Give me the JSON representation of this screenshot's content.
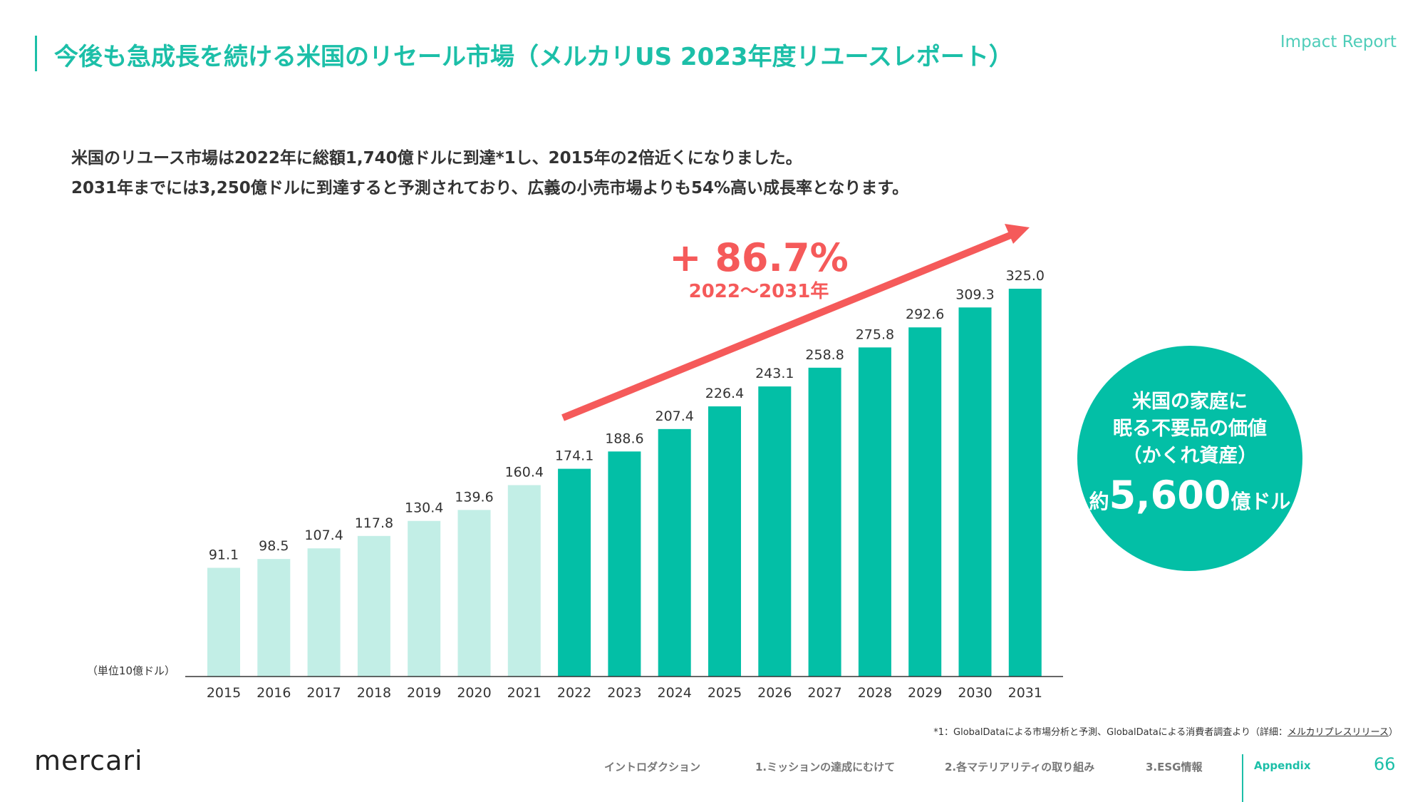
{
  "header": {
    "title": "今後も急成長を続ける米国のリセール市場（メルカリUS 2023年度リユースレポート）",
    "report": "Impact Report"
  },
  "lead": [
    "米国のリユース市場は2022年に総額1,740億ドルに到達*1し、2015年の2倍近くになりました。",
    "2031年までには3,250億ドルに到達すると予測されており、広義の小売市場よりも54%高い成長率となります。"
  ],
  "chart_data": {
    "type": "bar",
    "categories": [
      "2015",
      "2016",
      "2017",
      "2018",
      "2019",
      "2020",
      "2021",
      "2022",
      "2023",
      "2024",
      "2025",
      "2026",
      "2027",
      "2028",
      "2029",
      "2030",
      "2031"
    ],
    "values": [
      91.1,
      98.5,
      107.4,
      117.8,
      130.4,
      139.6,
      160.4,
      174.1,
      188.6,
      207.4,
      226.4,
      243.1,
      258.8,
      275.8,
      292.6,
      309.3,
      325.0
    ],
    "ylabel": "（単位10億ドル）",
    "ylim": [
      0,
      325
    ],
    "grid": false,
    "colors": {
      "actual": "#c2eee6",
      "forecast": "#03bfa6",
      "arrow": "#f55a5a"
    },
    "annotation": {
      "growth": "+ 86.7%",
      "period": "2022〜2031年"
    }
  },
  "callout": {
    "lines": [
      "米国の家庭に",
      "眠る不要品の価値",
      "（かくれ資産）"
    ],
    "prefix": "約",
    "amount": "5,600",
    "unit": "億ドル"
  },
  "footnote": {
    "text": "*1：GlobalDataによる市場分析と予測、GlobalDataによる消費者調査より（詳細：",
    "link": "メルカリプレスリリース",
    "close": "）"
  },
  "footer": {
    "logo": "mercari",
    "nav": [
      "イントロダクション",
      "1.ミッションの達成にむけて",
      "2.各マテリアリティの取り組み",
      "3.ESG情報",
      "Appendix"
    ],
    "page": "66"
  }
}
